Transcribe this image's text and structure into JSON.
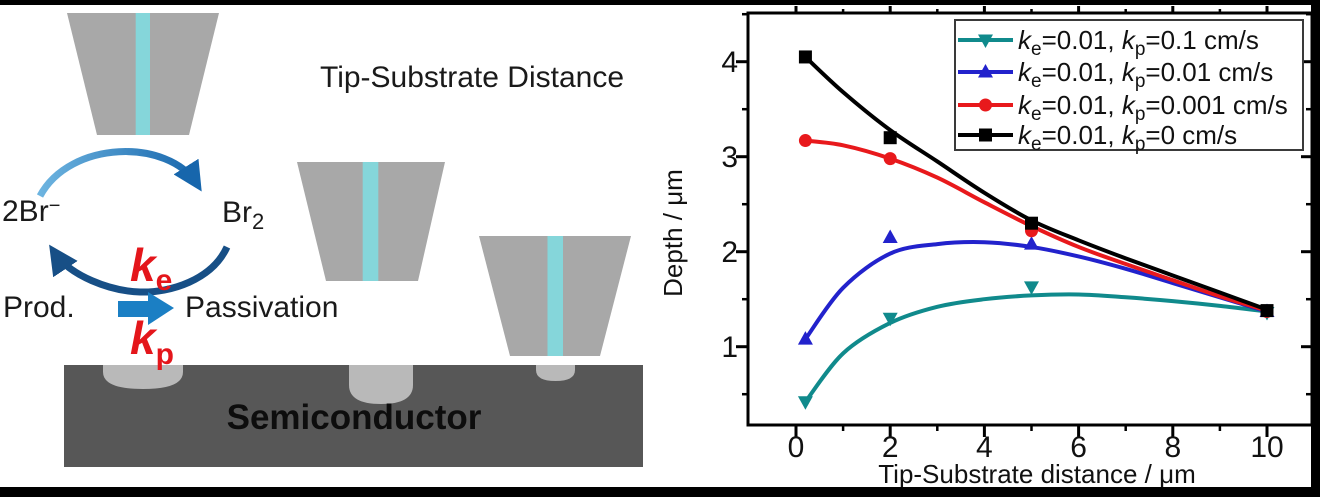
{
  "left_panel": {
    "title": "Tip-Substrate Distance",
    "cycle": {
      "species_left_main": "2Br",
      "species_left_sup": "−",
      "species_right_main": "Br",
      "species_right_sub": "2",
      "rate_e_main": "k",
      "rate_e_sub": "e",
      "rate_p_main": "k",
      "rate_p_sub": "p",
      "product_label": "Prod.",
      "passivation_label": "Passivation"
    },
    "substrate_label": "Semiconductor",
    "colors": {
      "tip_gray": "#a8a8a8",
      "stripe_cyan": "#85d6da",
      "substrate_gray": "#575757",
      "pit_gray": "#b9b9b9",
      "block_arrow_blue": "#1b7fc4",
      "rate_red": "#e4161b",
      "arc_light_blue": "#55a8dc",
      "arc_dark_blue": "#174f86"
    }
  },
  "chart_data": {
    "type": "line",
    "title": "",
    "xlabel": "Tip-Substrate distance / μm",
    "ylabel": "Depth / μm",
    "xlim": [
      -1,
      11
    ],
    "ylim": [
      0.15,
      4.5
    ],
    "grid": false,
    "legend_position": "top-right",
    "x_major_ticks": [
      0,
      2,
      4,
      6,
      8,
      10
    ],
    "x_minor_ticks": [
      1,
      3,
      5,
      7,
      9
    ],
    "y_major_ticks": [
      1,
      2,
      3,
      4
    ],
    "y_minor_ticks": [
      0.5,
      1.5,
      2.5,
      3.5,
      4.5
    ],
    "x_tick_labels": [
      "0",
      "2",
      "4",
      "6",
      "8",
      "10"
    ],
    "y_tick_labels": [
      "1",
      "2",
      "3",
      "4"
    ],
    "series": [
      {
        "name": "ke=0.01, kp=0.1 cm/s",
        "color": "#108a8c",
        "marker": "triangle-down",
        "points": [
          [
            0.2,
            0.42
          ],
          [
            2,
            1.3
          ],
          [
            5,
            1.63
          ],
          [
            10,
            1.36
          ]
        ],
        "fit_curve": [
          [
            0.2,
            0.42
          ],
          [
            1,
            0.93
          ],
          [
            2,
            1.25
          ],
          [
            3,
            1.42
          ],
          [
            4,
            1.5
          ],
          [
            5,
            1.54
          ],
          [
            6,
            1.55
          ],
          [
            7,
            1.52
          ],
          [
            8,
            1.48
          ],
          [
            9,
            1.43
          ],
          [
            10,
            1.37
          ]
        ]
      },
      {
        "name": "ke=0.01, kp=0.01 cm/s",
        "color": "#2222cc",
        "marker": "triangle-up",
        "points": [
          [
            0.2,
            1.08
          ],
          [
            2,
            2.15
          ],
          [
            5,
            2.08
          ],
          [
            10,
            1.37
          ]
        ],
        "fit_curve": [
          [
            0.2,
            1.08
          ],
          [
            1,
            1.62
          ],
          [
            2,
            1.98
          ],
          [
            3,
            2.08
          ],
          [
            4,
            2.1
          ],
          [
            5,
            2.05
          ],
          [
            6,
            1.95
          ],
          [
            7,
            1.82
          ],
          [
            8,
            1.67
          ],
          [
            9,
            1.52
          ],
          [
            10,
            1.37
          ]
        ]
      },
      {
        "name": "ke=0.01, kp=0.001 cm/s",
        "color": "#e8191c",
        "marker": "circle",
        "points": [
          [
            0.2,
            3.17
          ],
          [
            2,
            2.98
          ],
          [
            5,
            2.22
          ],
          [
            10,
            1.37
          ]
        ],
        "fit_curve": [
          [
            0.2,
            3.17
          ],
          [
            1,
            3.12
          ],
          [
            2,
            2.98
          ],
          [
            3,
            2.78
          ],
          [
            4,
            2.52
          ],
          [
            5,
            2.27
          ],
          [
            6,
            2.05
          ],
          [
            7,
            1.87
          ],
          [
            8,
            1.7
          ],
          [
            9,
            1.53
          ],
          [
            10,
            1.38
          ]
        ]
      },
      {
        "name": "ke=0.01, kp=0 cm/s",
        "color": "#000000",
        "marker": "square",
        "points": [
          [
            0.2,
            4.05
          ],
          [
            2,
            3.2
          ],
          [
            5,
            2.3
          ],
          [
            10,
            1.38
          ]
        ],
        "fit_curve": [
          [
            0.2,
            4.05
          ],
          [
            1,
            3.68
          ],
          [
            2,
            3.28
          ],
          [
            3,
            2.95
          ],
          [
            4,
            2.62
          ],
          [
            5,
            2.33
          ],
          [
            6,
            2.12
          ],
          [
            7,
            1.93
          ],
          [
            8,
            1.75
          ],
          [
            9,
            1.57
          ],
          [
            10,
            1.39
          ]
        ]
      }
    ],
    "legend_items": [
      {
        "k1": "k",
        "s1": "e",
        "t1": "=0.01, ",
        "k2": "k",
        "s2": "p",
        "t2": "=0.1 cm/s"
      },
      {
        "k1": "k",
        "s1": "e",
        "t1": "=0.01, ",
        "k2": "k",
        "s2": "p",
        "t2": "=0.01 cm/s"
      },
      {
        "k1": "k",
        "s1": "e",
        "t1": "=0.01, ",
        "k2": "k",
        "s2": "p",
        "t2": "=0.001 cm/s"
      },
      {
        "k1": "k",
        "s1": "e",
        "t1": "=0.01, ",
        "k2": "k",
        "s2": "p",
        "t2": "=0 cm/s"
      }
    ]
  }
}
